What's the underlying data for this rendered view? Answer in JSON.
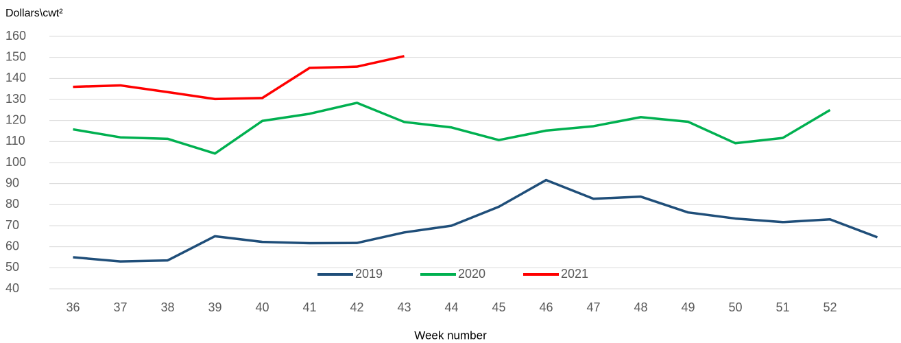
{
  "chart_data": {
    "type": "line",
    "ylabel": "Dollars\\cwt²",
    "xlabel": "Week number",
    "categories": [
      "36",
      "37",
      "38",
      "39",
      "40",
      "41",
      "42",
      "43",
      "44",
      "45",
      "46",
      "47",
      "48",
      "49",
      "50",
      "51",
      "52",
      null
    ],
    "series": [
      {
        "name": "2019",
        "color": "#1f4e79",
        "values": [
          55,
          53,
          53.5,
          65,
          62.3,
          61.7,
          61.8,
          66.8,
          70,
          79,
          91.7,
          82.8,
          83.8,
          76.3,
          73.4,
          71.7,
          73,
          64.5
        ]
      },
      {
        "name": "2020",
        "color": "#00b050",
        "values": [
          115.8,
          112,
          111.3,
          104.3,
          119.8,
          123.2,
          128.4,
          119.3,
          116.7,
          110.7,
          115.2,
          117.3,
          121.6,
          119.4,
          109.2,
          111.7,
          125,
          null
        ]
      },
      {
        "name": "2021",
        "color": "#ff0000",
        "values": [
          136,
          136.7,
          133.5,
          130.2,
          130.7,
          145,
          145.6,
          150.6,
          null,
          null,
          null,
          null,
          null,
          null,
          null,
          null,
          null,
          null
        ]
      }
    ],
    "ylim": [
      40,
      160
    ],
    "yticks": [
      40,
      50,
      60,
      70,
      80,
      90,
      100,
      110,
      120,
      130,
      140,
      150,
      160
    ],
    "grid": true,
    "legend": "bottom"
  }
}
